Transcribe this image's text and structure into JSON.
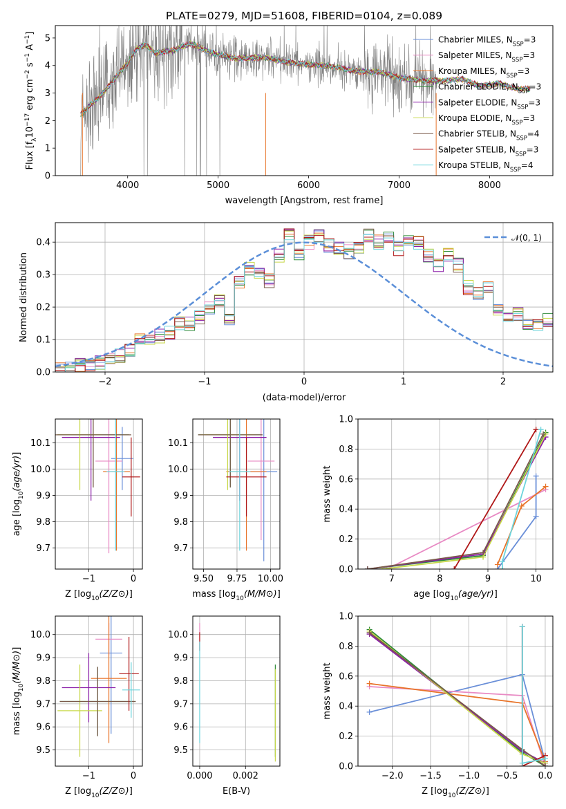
{
  "figure": {
    "title": "PLATE=0279, MJD=51608, FIBERID=0104, z=0.089"
  },
  "legend_spectrum": [
    {
      "prefix": "Chabrier MILES, N",
      "sub": "SSP",
      "suffix": "=3",
      "color": "#6a8fd8"
    },
    {
      "prefix": "Salpeter MILES, N",
      "sub": "SSP",
      "suffix": "=3",
      "color": "#e88ac4"
    },
    {
      "prefix": "Kroupa MILES, N",
      "sub": "SSP",
      "suffix": "=3",
      "color": "#e8742a"
    },
    {
      "prefix": "Chabrier ELODIE, N",
      "sub": "SSP",
      "suffix": "=3",
      "color": "#2e8b3a"
    },
    {
      "prefix": "Salpeter ELODIE, N",
      "sub": "SSP",
      "suffix": "=3",
      "color": "#8b1fa8"
    },
    {
      "prefix": "Kroupa ELODIE, N",
      "sub": "SSP",
      "suffix": "=3",
      "color": "#c8d84a"
    },
    {
      "prefix": "Chabrier STELIB, N",
      "sub": "SSP",
      "suffix": "=4",
      "color": "#7a5a4a"
    },
    {
      "prefix": "Salpeter STELIB, N",
      "sub": "SSP",
      "suffix": "=3",
      "color": "#b01818"
    },
    {
      "prefix": "Kroupa STELIB, N",
      "sub": "SSP",
      "suffix": "=4",
      "color": "#6cd4dc"
    }
  ],
  "legend_normal": {
    "label": "𝒩(0, 1)",
    "color": "#5b8fd8"
  },
  "chart_data": [
    {
      "type": "line",
      "title": "PLATE=0279, MJD=51608, FIBERID=0104, z=0.089",
      "xlabel": "wavelength [Angstrom, rest frame]",
      "ylabel_parts": [
        "Flux [f",
        "λ",
        "10",
        "−17",
        " erg cm",
        "−2",
        " s",
        "−1",
        " A",
        "−1",
        "]"
      ],
      "xlim": [
        3200,
        8700
      ],
      "ylim": [
        0,
        5.45
      ],
      "xticks": [
        4000,
        5000,
        6000,
        7000,
        8000
      ],
      "yticks": [
        0,
        1,
        2,
        3,
        4,
        5
      ],
      "data_color": "#808080",
      "model_continuum": {
        "x": [
          3480,
          3600,
          3700,
          3800,
          3900,
          4000,
          4100,
          4200,
          4300,
          4500,
          4700,
          4860,
          5000,
          5200,
          5500,
          5800,
          6000,
          6300,
          6500,
          6800,
          7000,
          7300,
          7500,
          7700,
          7900,
          8100,
          8300,
          8450
        ],
        "y": [
          2.2,
          2.6,
          2.9,
          3.3,
          3.7,
          4.1,
          4.6,
          4.75,
          4.45,
          4.55,
          4.8,
          4.55,
          4.4,
          4.25,
          4.3,
          4.1,
          4.05,
          3.95,
          3.8,
          3.75,
          3.55,
          3.45,
          3.45,
          3.5,
          3.25,
          3.35,
          3.15,
          3.15
        ]
      }
    },
    {
      "type": "histogram",
      "xlabel": "(data-model)/error",
      "ylabel": "Normed distribution",
      "xlim": [
        -2.5,
        2.5
      ],
      "ylim": [
        0,
        0.46
      ],
      "xticks": [
        -2,
        -1,
        0,
        1,
        2
      ],
      "yticks": [
        0.0,
        0.1,
        0.2,
        0.3,
        0.4
      ],
      "bin_edges_start": -2.5,
      "bin_width": 0.1,
      "mean_heights": [
        0.01,
        0.015,
        0.02,
        0.025,
        0.03,
        0.04,
        0.05,
        0.07,
        0.1,
        0.1,
        0.11,
        0.12,
        0.15,
        0.15,
        0.17,
        0.2,
        0.22,
        0.16,
        0.28,
        0.32,
        0.3,
        0.28,
        0.36,
        0.42,
        0.36,
        0.4,
        0.42,
        0.39,
        0.38,
        0.37,
        0.38,
        0.42,
        0.4,
        0.41,
        0.38,
        0.41,
        0.4,
        0.36,
        0.33,
        0.36,
        0.33,
        0.26,
        0.24,
        0.26,
        0.19,
        0.16,
        0.18,
        0.15,
        0.15,
        0.16
      ],
      "normal_pdf": {
        "mean": 0,
        "sigma": 1
      }
    },
    {
      "type": "scatter-errorbar",
      "xlabel": "Z [log10(Z/Z⊙)]",
      "ylabel": "age  [log10(age/yr)]",
      "xlim": [
        -1.75,
        0.2
      ],
      "ylim": [
        9.62,
        10.19
      ],
      "xticks": [
        -1,
        0
      ],
      "yticks": [
        9.7,
        9.8,
        9.9,
        10.0,
        10.1
      ],
      "points": [
        {
          "x": -0.25,
          "y": 10.04,
          "xerr": 0.25,
          "yerr": 0.12,
          "color": "#6a8fd8"
        },
        {
          "x": -0.55,
          "y": 10.03,
          "xerr": 0.3,
          "yerr": 0.35,
          "color": "#e88ac4"
        },
        {
          "x": -0.38,
          "y": 9.99,
          "xerr": 0.3,
          "yerr": 0.3,
          "color": "#e8742a"
        },
        {
          "x": -0.9,
          "y": 10.13,
          "xerr": 0.8,
          "yerr": 0.2,
          "color": "#2e8b3a"
        },
        {
          "x": -0.95,
          "y": 10.12,
          "xerr": 0.65,
          "yerr": 0.24,
          "color": "#8b1fa8"
        },
        {
          "x": -1.2,
          "y": 10.13,
          "xerr": 0.5,
          "yerr": 0.21,
          "color": "#c8d84a"
        },
        {
          "x": -0.9,
          "y": 10.13,
          "xerr": 0.85,
          "yerr": 0.2,
          "color": "#7a5a4a"
        },
        {
          "x": -0.05,
          "y": 9.97,
          "xerr": 0.2,
          "yerr": 0.15,
          "color": "#b01818"
        },
        {
          "x": -0.4,
          "y": 9.99,
          "xerr": 0.2,
          "yerr": 0.3,
          "color": "#6cd4dc"
        }
      ]
    },
    {
      "type": "scatter-errorbar",
      "xlabel": "mass [log10(M/M⊙)]",
      "ylabel": "",
      "xlim": [
        9.42,
        10.07
      ],
      "ylim": [
        9.62,
        10.19
      ],
      "xticks": [
        9.5,
        9.75,
        10.0
      ],
      "yticks": [
        9.7,
        9.8,
        9.9,
        10.0,
        10.1
      ],
      "points": [
        {
          "x": 9.95,
          "y": 9.99,
          "xerr": 0.1,
          "yerr": 0.34,
          "color": "#6a8fd8"
        },
        {
          "x": 9.93,
          "y": 10.03,
          "xerr": 0.1,
          "yerr": 0.3,
          "color": "#e88ac4"
        },
        {
          "x": 9.82,
          "y": 9.99,
          "xerr": 0.15,
          "yerr": 0.3,
          "color": "#e8742a"
        },
        {
          "x": 9.7,
          "y": 10.13,
          "xerr": 0.24,
          "yerr": 0.2,
          "color": "#2e8b3a"
        },
        {
          "x": 9.77,
          "y": 10.12,
          "xerr": 0.2,
          "yerr": 0.24,
          "color": "#8b1fa8"
        },
        {
          "x": 9.68,
          "y": 10.13,
          "xerr": 0.2,
          "yerr": 0.21,
          "color": "#c8d84a"
        },
        {
          "x": 9.7,
          "y": 10.13,
          "xerr": 0.24,
          "yerr": 0.2,
          "color": "#7a5a4a"
        },
        {
          "x": 9.82,
          "y": 9.97,
          "xerr": 0.15,
          "yerr": 0.15,
          "color": "#b01818"
        },
        {
          "x": 9.77,
          "y": 9.99,
          "xerr": 0.08,
          "yerr": 0.3,
          "color": "#6cd4dc"
        }
      ]
    },
    {
      "type": "line",
      "xlabel": "age  [log10(age/yr)]",
      "ylabel": "mass weight",
      "xlim": [
        6.3,
        10.35
      ],
      "ylim": [
        0,
        1
      ],
      "xticks": [
        7,
        8,
        9,
        10
      ],
      "yticks": [
        0.0,
        0.2,
        0.4,
        0.6,
        0.8,
        1.0
      ],
      "series": [
        {
          "color": "#6a8fd8",
          "x": [
            9.2,
            10.0,
            10.0
          ],
          "y": [
            0.0,
            0.35,
            0.62
          ]
        },
        {
          "color": "#e88ac4",
          "x": [
            6.9,
            10.2
          ],
          "y": [
            0.0,
            0.53
          ]
        },
        {
          "color": "#e8742a",
          "x": [
            9.2,
            9.7,
            10.2
          ],
          "y": [
            0.03,
            0.42,
            0.55
          ]
        },
        {
          "color": "#2e8b3a",
          "x": [
            6.5,
            8.9,
            10.2
          ],
          "y": [
            0.0,
            0.09,
            0.91
          ]
        },
        {
          "color": "#8b1fa8",
          "x": [
            6.5,
            8.9,
            10.2
          ],
          "y": [
            0.0,
            0.1,
            0.88
          ]
        },
        {
          "color": "#c8d84a",
          "x": [
            6.8,
            8.9,
            10.2
          ],
          "y": [
            0.0,
            0.08,
            0.9
          ]
        },
        {
          "color": "#7a5a4a",
          "x": [
            6.5,
            8.9,
            10.15
          ],
          "y": [
            0.0,
            0.11,
            0.9
          ]
        },
        {
          "color": "#b01818",
          "x": [
            8.3,
            10.0
          ],
          "y": [
            0.0,
            0.93
          ]
        },
        {
          "color": "#6cd4dc",
          "x": [
            9.3,
            9.3,
            10.1
          ],
          "y": [
            0.0,
            0.05,
            0.93
          ]
        }
      ]
    },
    {
      "type": "scatter-errorbar",
      "xlabel": "Z [log10(Z/Z⊙)]",
      "ylabel": "mass [log10(M/M⊙)]",
      "xlim": [
        -1.75,
        0.2
      ],
      "ylim": [
        9.43,
        10.08
      ],
      "xticks": [
        -1,
        0
      ],
      "yticks": [
        9.5,
        9.6,
        9.7,
        9.8,
        9.9,
        10.0
      ],
      "points": [
        {
          "x": -0.5,
          "y": 9.92,
          "xerr": 0.25,
          "yerr": 0.35,
          "color": "#6a8fd8"
        },
        {
          "x": -0.55,
          "y": 9.98,
          "xerr": 0.3,
          "yerr": 0.07,
          "color": "#e88ac4"
        },
        {
          "x": -0.55,
          "y": 9.81,
          "xerr": 0.4,
          "yerr": 0.28,
          "color": "#e8742a"
        },
        {
          "x": -0.8,
          "y": 9.71,
          "xerr": 0.85,
          "yerr": 0.15,
          "color": "#2e8b3a"
        },
        {
          "x": -1.0,
          "y": 9.77,
          "xerr": 0.6,
          "yerr": 0.15,
          "color": "#8b1fa8"
        },
        {
          "x": -1.2,
          "y": 9.67,
          "xerr": 0.5,
          "yerr": 0.2,
          "color": "#c8d84a"
        },
        {
          "x": -0.8,
          "y": 9.71,
          "xerr": 0.85,
          "yerr": 0.15,
          "color": "#7a5a4a"
        },
        {
          "x": -0.1,
          "y": 9.83,
          "xerr": 0.22,
          "yerr": 0.16,
          "color": "#b01818"
        },
        {
          "x": -0.05,
          "y": 9.76,
          "xerr": 0.2,
          "yerr": 0.12,
          "color": "#6cd4dc"
        }
      ]
    },
    {
      "type": "scatter-errorbar",
      "xlabel": "E(B-V)",
      "ylabel": "",
      "xlim": [
        -0.0003,
        0.0035
      ],
      "ylim": [
        9.43,
        10.08
      ],
      "xticks": [
        0.0,
        0.002
      ],
      "xtick_labels": [
        "0.000",
        "0.002"
      ],
      "yticks": [
        9.5,
        9.6,
        9.7,
        9.8,
        9.9,
        10.0
      ],
      "points": [
        {
          "x": 0.0,
          "y": 9.99,
          "xerr": 0,
          "yerr": 0.06,
          "color": "#e88ac4"
        },
        {
          "x": 0.0,
          "y": 9.97,
          "xerr": 0,
          "yerr": 0.04,
          "color": "#b01818"
        },
        {
          "x": 0.0,
          "y": 9.75,
          "xerr": 0,
          "yerr": 0.22,
          "color": "#6cd4dc"
        },
        {
          "x": 0.0033,
          "y": 9.67,
          "xerr": 0,
          "yerr": 0.2,
          "color": "#2e8b3a"
        },
        {
          "x": 0.0033,
          "y": 9.65,
          "xerr": 0,
          "yerr": 0.2,
          "color": "#c8d84a"
        }
      ]
    },
    {
      "type": "line",
      "xlabel": "Z [log10(Z/Z⊙)]",
      "ylabel": "mass weight",
      "xlim": [
        -2.45,
        0.1
      ],
      "ylim": [
        0,
        1
      ],
      "xticks": [
        -2.0,
        -1.5,
        -1.0,
        -0.5,
        0.0
      ],
      "yticks": [
        0.0,
        0.2,
        0.4,
        0.6,
        0.8,
        1.0
      ],
      "series": [
        {
          "color": "#6a8fd8",
          "x": [
            -2.3,
            -0.3,
            0.0
          ],
          "y": [
            0.36,
            0.61,
            0.03
          ]
        },
        {
          "color": "#e88ac4",
          "x": [
            -2.3,
            -0.3,
            0.0
          ],
          "y": [
            0.53,
            0.47,
            0.0
          ]
        },
        {
          "color": "#e8742a",
          "x": [
            -2.3,
            -0.3,
            0.0
          ],
          "y": [
            0.55,
            0.42,
            0.03
          ]
        },
        {
          "color": "#2e8b3a",
          "x": [
            -2.3,
            -0.3,
            0.0
          ],
          "y": [
            0.91,
            0.09,
            0.0
          ]
        },
        {
          "color": "#8b1fa8",
          "x": [
            -2.3,
            -0.3,
            0.0
          ],
          "y": [
            0.88,
            0.1,
            0.02
          ]
        },
        {
          "color": "#c8d84a",
          "x": [
            -2.3,
            -0.3,
            0.0
          ],
          "y": [
            0.9,
            0.08,
            0.02
          ]
        },
        {
          "color": "#7a5a4a",
          "x": [
            -2.3,
            -0.3,
            0.0
          ],
          "y": [
            0.89,
            0.11,
            0.0
          ]
        },
        {
          "color": "#b01818",
          "x": [
            -0.3,
            -0.3,
            0.0
          ],
          "y": [
            0.93,
            0.0,
            0.07
          ]
        },
        {
          "color": "#6cd4dc",
          "x": [
            -0.3,
            -0.3,
            0.0
          ],
          "y": [
            0.93,
            0.02,
            0.05
          ]
        }
      ]
    }
  ]
}
